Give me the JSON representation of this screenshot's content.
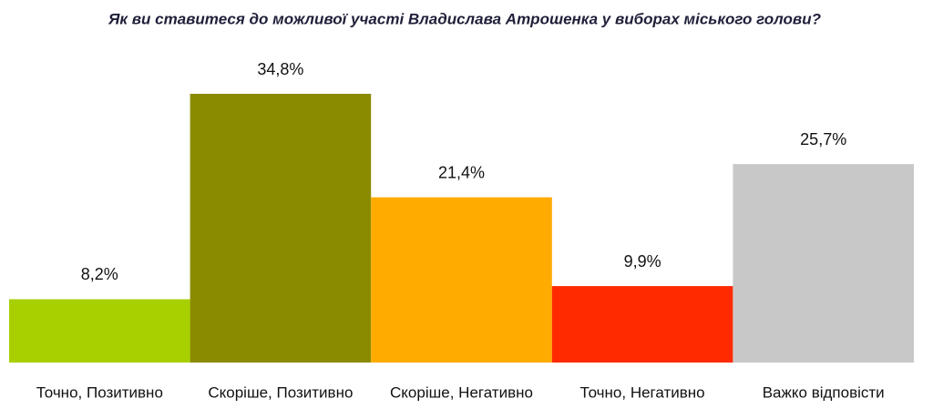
{
  "chart_data": {
    "type": "bar",
    "title": "Як ви ставитеся до можливої  участі Владислава Атрошенка у виборах міського голови?",
    "categories": [
      "Точно, Позитивно",
      "Скоріше, Позитивно",
      "Скоріше, Негативно",
      "Точно, Негативно",
      "Важко відповісти"
    ],
    "values": [
      8.2,
      34.8,
      21.4,
      9.9,
      25.7
    ],
    "value_labels": [
      "8,2%",
      "34,8%",
      "21,4%",
      "9,9%",
      "25,7%"
    ],
    "colors": [
      "#a8d000",
      "#8b8b00",
      "#ffab00",
      "#ff2a00",
      "#c8c8c8"
    ]
  }
}
